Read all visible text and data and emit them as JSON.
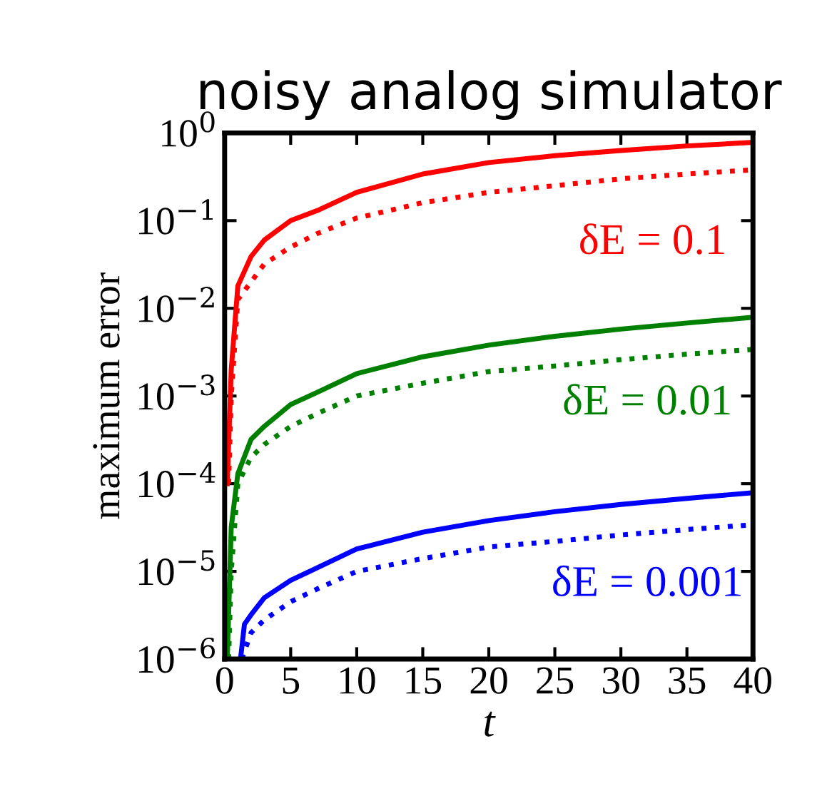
{
  "chart_data": {
    "type": "line",
    "title": "noisy analog simulator",
    "xlabel": "t",
    "ylabel": "maximum error",
    "log": "y",
    "xlim": [
      0,
      40
    ],
    "xticks": [
      0,
      5,
      10,
      15,
      20,
      25,
      30,
      35,
      40
    ],
    "ylim": [
      1e-06,
      1
    ],
    "yticks": [
      {
        "value": 1e-06,
        "label": "10$^{−6}$"
      },
      {
        "value": 1e-05,
        "label": "10$^{−5}$"
      },
      {
        "value": 0.0001,
        "label": "10$^{−4}$"
      },
      {
        "value": 0.001,
        "label": "10$^{−3}$"
      },
      {
        "value": 0.01,
        "label": "10$^{−2}$"
      },
      {
        "value": 0.1,
        "label": "10$^{−1}$"
      },
      {
        "value": 1,
        "label": "10$^{0}$"
      }
    ],
    "grid": false,
    "series": [
      {
        "color": "#ff0000",
        "line_style": "solid",
        "x": [
          0.2,
          0.5,
          1,
          2,
          3,
          5,
          7,
          10,
          15,
          20,
          25,
          30,
          35,
          40
        ],
        "values": [
          0.0001,
          0.002,
          0.018,
          0.039,
          0.06,
          0.1,
          0.13,
          0.21,
          0.34,
          0.46,
          0.55,
          0.63,
          0.71,
          0.78
        ]
      },
      {
        "color": "#ff0000",
        "line_style": "dotted",
        "x": [
          0.3,
          0.5,
          1,
          2,
          3,
          5,
          7,
          10,
          15,
          20,
          25,
          30,
          35,
          40
        ],
        "values": [
          0.0001,
          0.001,
          0.0126,
          0.02,
          0.032,
          0.05,
          0.071,
          0.107,
          0.16,
          0.21,
          0.25,
          0.3,
          0.34,
          0.38
        ]
      },
      {
        "color": "#008000",
        "line_style": "solid",
        "x": [
          0.2,
          0.5,
          1,
          2,
          3,
          5,
          7,
          10,
          15,
          20,
          25,
          30,
          35,
          40
        ],
        "values": [
          1e-06,
          3.2e-05,
          0.00013,
          0.00032,
          0.00045,
          0.0008,
          0.0011,
          0.0018,
          0.0028,
          0.0038,
          0.0048,
          0.0058,
          0.0068,
          0.0079
        ]
      },
      {
        "color": "#008000",
        "line_style": "dotted",
        "x": [
          0.3,
          0.5,
          1,
          2,
          3,
          5,
          7,
          10,
          15,
          20,
          25,
          30,
          35,
          40
        ],
        "values": [
          1e-06,
          1e-05,
          0.0001,
          0.0002,
          0.00028,
          0.00045,
          0.00063,
          0.001,
          0.0014,
          0.0019,
          0.0022,
          0.0026,
          0.003,
          0.0034
        ]
      },
      {
        "color": "#0000ff",
        "line_style": "solid",
        "x": [
          1.2,
          1.5,
          2,
          3,
          5,
          7,
          10,
          15,
          20,
          25,
          30,
          35,
          40
        ],
        "values": [
          1e-06,
          2.5e-06,
          3.2e-06,
          5e-06,
          7.9e-06,
          1.1e-05,
          1.8e-05,
          2.8e-05,
          3.8e-05,
          4.8e-05,
          5.8e-05,
          6.8e-05,
          7.9e-05
        ]
      },
      {
        "color": "#0000ff",
        "line_style": "dotted",
        "x": [
          1.3,
          2,
          3,
          5,
          7,
          10,
          15,
          20,
          25,
          30,
          35,
          40
        ],
        "values": [
          1e-06,
          2e-06,
          2.8e-06,
          4.5e-06,
          6.3e-06,
          1e-05,
          1.4e-05,
          1.9e-05,
          2.2e-05,
          2.6e-05,
          3e-05,
          3.4e-05
        ]
      }
    ],
    "annotations": [
      "δE = 0.1",
      "δE = 0.01",
      "δE = 0.001"
    ]
  }
}
